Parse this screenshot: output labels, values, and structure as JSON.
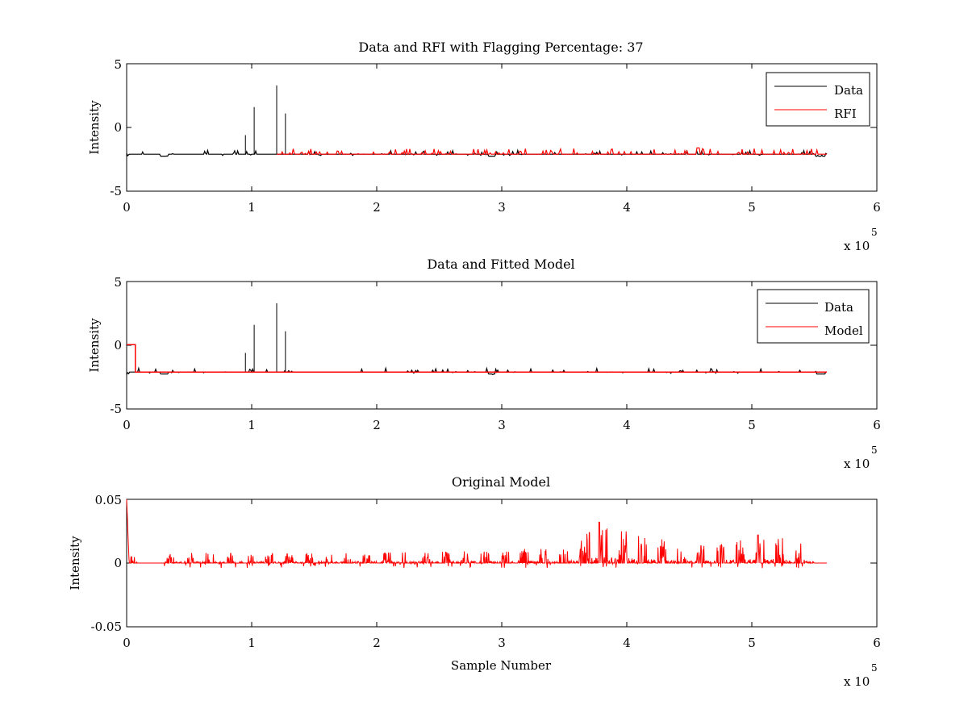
{
  "figure": {
    "background": "#ffffff"
  },
  "chart_data": [
    {
      "type": "line",
      "title": "Data and RFI with Flagging Percentage: 37",
      "xlabel": "",
      "ylabel": "Intensity",
      "xlim": [
        0,
        6
      ],
      "ylim": [
        -5,
        5
      ],
      "xticks": [
        "0",
        "1",
        "2",
        "3",
        "4",
        "5",
        "6"
      ],
      "yticks": [
        "-5",
        "0",
        "5"
      ],
      "x_multiplier_base": "x 10",
      "x_multiplier_exp": "5",
      "legend_position": "top-right",
      "baseline": -2.1,
      "red_start": 1.2,
      "spikes": [
        [
          0.95,
          -0.6
        ],
        [
          1.02,
          1.6
        ],
        [
          1.2,
          3.3
        ],
        [
          1.27,
          1.1
        ]
      ],
      "series": [
        {
          "name": "Data",
          "color": "#000000",
          "x": [
            0,
            0.02,
            0.3,
            0.35,
            0.7,
            2.9,
            2.95,
            5.5,
            5.55,
            5.6
          ],
          "y": [
            -2.3,
            -2.1,
            -2.2,
            -2.05,
            -2.1,
            -2.2,
            -2.05,
            -2.1,
            -2.2,
            -2.0
          ]
        },
        {
          "name": "RFI",
          "color": "#ff0000",
          "x": [
            1.2,
            1.45,
            1.7,
            2.2,
            2.9,
            3.5,
            4.05,
            4.57,
            5.05,
            5.5
          ],
          "y": [
            -2.05,
            -1.9,
            -1.9,
            -2.0,
            -2.1,
            -2.0,
            -1.9,
            -1.7,
            -1.8,
            -2.0
          ]
        }
      ]
    },
    {
      "type": "line",
      "title": "Data and Fitted Model",
      "xlabel": "",
      "ylabel": "Intensity",
      "xlim": [
        0,
        6
      ],
      "ylim": [
        -5,
        5
      ],
      "xticks": [
        "0",
        "1",
        "2",
        "3",
        "4",
        "5",
        "6"
      ],
      "yticks": [
        "-5",
        "0",
        "5"
      ],
      "x_multiplier_base": "x 10",
      "x_multiplier_exp": "5",
      "legend_position": "top-right",
      "baseline": -2.1,
      "spikes": [
        [
          0.95,
          -0.6
        ],
        [
          1.02,
          1.6
        ],
        [
          1.2,
          3.3
        ],
        [
          1.27,
          1.1
        ]
      ],
      "model_step": {
        "x_end": 0.07,
        "y": 0.05
      },
      "series": [
        {
          "name": "Data",
          "color": "#000000",
          "x": [
            0,
            0.02,
            0.3,
            1.5,
            2.9,
            4.05,
            4.57,
            5.3,
            5.6
          ],
          "y": [
            -2.3,
            -2.1,
            -2.2,
            -1.9,
            -2.2,
            -1.9,
            -1.7,
            -1.8,
            -2.0
          ]
        },
        {
          "name": "Model",
          "color": "#ff0000",
          "x": [
            0,
            0.07,
            0.07,
            5.6
          ],
          "y": [
            0.05,
            0.05,
            -2.1,
            -2.1
          ]
        }
      ]
    },
    {
      "type": "line",
      "title": "Original Model",
      "xlabel": "Sample Number",
      "ylabel": "Intensity",
      "xlim": [
        0,
        6
      ],
      "ylim": [
        -0.05,
        0.05
      ],
      "xticks": [
        "0",
        "1",
        "2",
        "3",
        "4",
        "5",
        "6"
      ],
      "yticks": [
        "-0.05",
        "0",
        "0.05"
      ],
      "x_multiplier_base": "x 10",
      "x_multiplier_exp": "5",
      "legend_position": "none",
      "baseline": 0,
      "series": [
        {
          "name": "",
          "color": "#ff0000",
          "x": [
            0.01,
            0.02,
            0.5,
            1.5,
            2.5,
            3.5,
            3.78,
            4.5,
            5.05,
            5.3,
            5.45,
            5.6
          ],
          "y": [
            0.05,
            0.005,
            0.008,
            0.008,
            0.009,
            0.012,
            0.032,
            0.013,
            0.022,
            0.019,
            0.017,
            0.0
          ]
        }
      ]
    }
  ]
}
